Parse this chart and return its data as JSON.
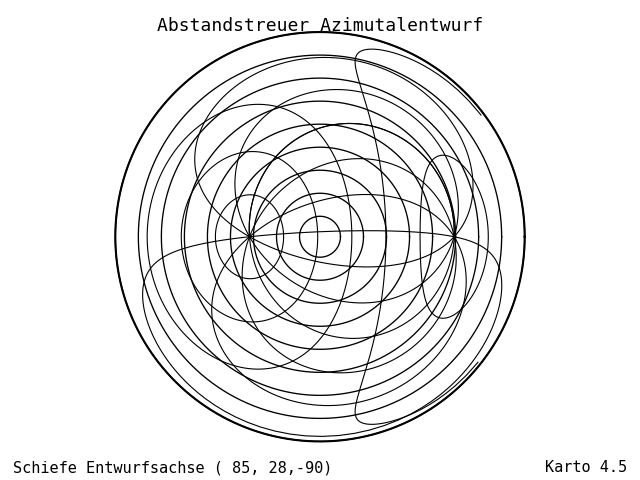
{
  "title": "Abstandstreuer Azimutalentwurf",
  "subtitle_left": "Schiefe Entwurfsachse ( 85, 28,-90)",
  "subtitle_right": "Karto 4.5",
  "central_longitude": 85.0,
  "central_latitude": 28.0,
  "rotation_deg": 270.0,
  "bg_color": "#ffffff",
  "coastline_color": "#0000cc",
  "coastline_linewidth": 0.7,
  "grid_color": "#000000",
  "grid_linewidth": 0.8,
  "title_fontsize": 13,
  "subtitle_fontsize": 11,
  "figsize": [
    6.4,
    4.8
  ],
  "dpi": 100,
  "graticule_lon_step": 30,
  "graticule_lat_step": 30
}
